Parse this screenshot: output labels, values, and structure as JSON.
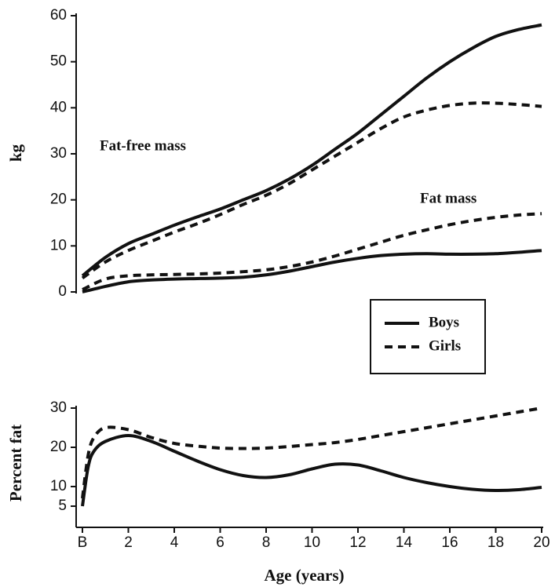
{
  "chart_data": [
    {
      "type": "line",
      "ylabel": "kg",
      "annotations": [
        {
          "text": "Fat-free mass"
        },
        {
          "text": "Fat mass"
        }
      ],
      "legend": [
        {
          "label": "Boys",
          "line_style": "solid"
        },
        {
          "label": "Girls",
          "line_style": "dashed"
        }
      ],
      "x": [
        0,
        1,
        2,
        3,
        4,
        5,
        6,
        7,
        8,
        9,
        10,
        11,
        12,
        13,
        14,
        15,
        16,
        17,
        18,
        19,
        20
      ],
      "xlim": [
        0,
        20
      ],
      "ylim": [
        0,
        60
      ],
      "yticks": [
        0,
        10,
        20,
        30,
        40,
        50,
        60
      ],
      "series": [
        {
          "line_style": "solid",
          "color": "#111111",
          "values": [
            3.5,
            7.5,
            10.5,
            12.5,
            14.5,
            16.3,
            18,
            20,
            22,
            24.5,
            27.5,
            31,
            34.5,
            38.5,
            42.5,
            46.5,
            50,
            53,
            55.5,
            57,
            58
          ]
        },
        {
          "line_style": "dashed",
          "color": "#111111",
          "values": [
            3,
            6.5,
            9,
            11,
            13,
            14.8,
            16.8,
            19,
            21,
            23.5,
            26.5,
            29.5,
            32.5,
            35.5,
            38,
            39.5,
            40.5,
            41,
            41,
            40.7,
            40.3
          ]
        },
        {
          "line_style": "solid",
          "color": "#111111",
          "values": [
            0,
            1.2,
            2.2,
            2.6,
            2.8,
            2.9,
            3,
            3.2,
            3.7,
            4.5,
            5.5,
            6.5,
            7.3,
            7.9,
            8.2,
            8.3,
            8.2,
            8.2,
            8.3,
            8.6,
            9
          ]
        },
        {
          "line_style": "dashed",
          "color": "#111111",
          "values": [
            0.5,
            2.8,
            3.5,
            3.7,
            3.8,
            3.9,
            4.1,
            4.4,
            4.8,
            5.5,
            6.5,
            7.8,
            9.3,
            10.8,
            12.3,
            13.5,
            14.6,
            15.5,
            16.2,
            16.7,
            17
          ]
        }
      ]
    },
    {
      "type": "line",
      "xlabel": "Age (years)",
      "ylabel": "Percent fat",
      "x": [
        0,
        0.25,
        0.5,
        1,
        2,
        3,
        4,
        5,
        6,
        7,
        8,
        9,
        10,
        11,
        12,
        13,
        14,
        15,
        16,
        17,
        18,
        19,
        20
      ],
      "xlim": [
        0,
        20
      ],
      "xticks": [
        {
          "value": 0,
          "label": "B"
        },
        2,
        4,
        6,
        8,
        10,
        12,
        14,
        16,
        18,
        20
      ],
      "ylim": [
        0,
        30
      ],
      "yticks": [
        5,
        10,
        20,
        30
      ],
      "series": [
        {
          "line_style": "solid",
          "color": "#111111",
          "values": [
            5,
            15,
            19,
            21.5,
            23,
            21.5,
            19,
            16.5,
            14.3,
            12.8,
            12.3,
            13,
            14.5,
            15.7,
            15.5,
            14,
            12.3,
            11,
            10,
            9.3,
            9,
            9.2,
            9.8
          ]
        },
        {
          "line_style": "dashed",
          "color": "#111111",
          "values": [
            7,
            18,
            22.5,
            25,
            24.5,
            22.5,
            21,
            20.3,
            19.8,
            19.7,
            19.8,
            20.2,
            20.7,
            21.2,
            22,
            23,
            24,
            25,
            26,
            27,
            28,
            29,
            30
          ]
        }
      ]
    }
  ]
}
